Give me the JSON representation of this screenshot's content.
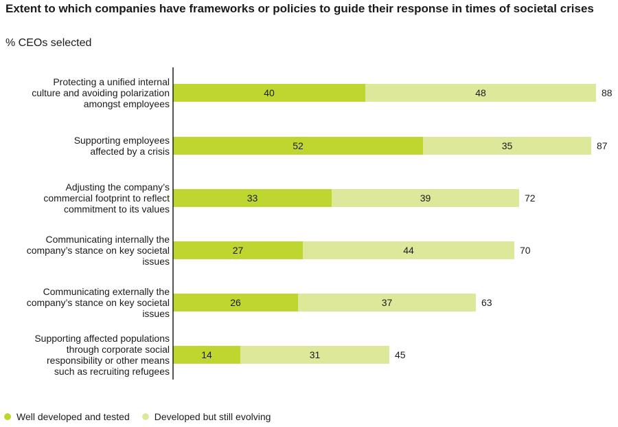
{
  "colors": {
    "well": "#bfd630",
    "evolving": "#dde89a",
    "axis": "#1a1a1a"
  },
  "chart_data": {
    "type": "bar",
    "orientation": "horizontal",
    "stacked": true,
    "title": "Extent to which companies have frameworks or policies to guide their response in times of societal crises",
    "subtitle": "% CEOs selected",
    "xlim": [
      0,
      88
    ],
    "categories": [
      [
        "Protecting a unified internal",
        "culture and avoiding polarization",
        "amongst employees"
      ],
      [
        "Supporting employees",
        "affected by a crisis"
      ],
      [
        "Adjusting the company’s",
        "commercial footprint to reflect",
        "commitment to its values"
      ],
      [
        "Communicating internally the",
        "company’s stance on key societal",
        "issues"
      ],
      [
        "Communicating externally the",
        "company’s stance on key societal",
        "issues"
      ],
      [
        "Supporting affected populations",
        "through corporate social",
        "responsibility or other means",
        "such as recruiting refugees"
      ]
    ],
    "series": [
      {
        "name": "Well developed and tested",
        "values": [
          40,
          52,
          33,
          27,
          26,
          14
        ]
      },
      {
        "name": "Developed but still evolving",
        "values": [
          48,
          35,
          39,
          44,
          37,
          31
        ]
      }
    ],
    "totals": [
      88,
      87,
      72,
      70,
      63,
      45
    ],
    "legend": [
      "Well developed and tested",
      "Developed but still evolving"
    ]
  }
}
